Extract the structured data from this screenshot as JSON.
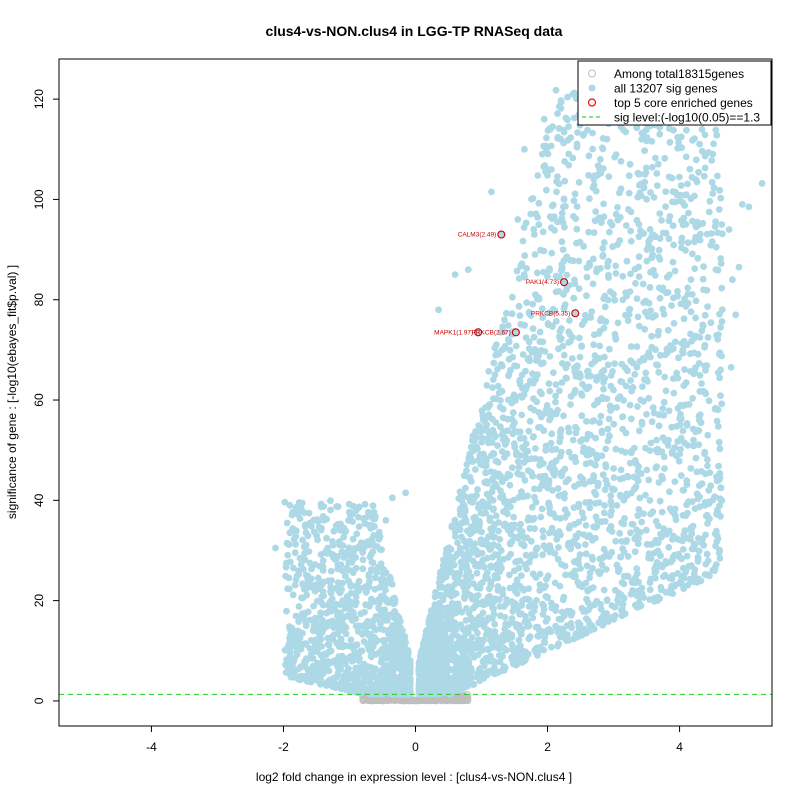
{
  "chart_data": {
    "type": "scatter",
    "title": "clus4-vs-NON.clus4 in LGG-TP RNASeq data",
    "xlabel": "log2 fold change in expression level : [clus4-vs-NON.clus4 ]",
    "ylabel": "significance of gene : [-log10(ebayes_fit$p.val) ]",
    "xlim": [
      -5.4,
      5.4
    ],
    "ylim": [
      -5,
      128
    ],
    "x_ticks": [
      -4,
      -2,
      0,
      2,
      4
    ],
    "y_ticks": [
      0,
      20,
      40,
      60,
      80,
      100,
      120
    ],
    "x_tick_labels": [
      "-4",
      "-2",
      "0",
      "2",
      "4"
    ],
    "y_tick_labels": [
      "0",
      "20",
      "40",
      "60",
      "80",
      "100",
      "120"
    ],
    "grid": false,
    "legend_position": "top-right",
    "legend": [
      {
        "label": "Among total18315genes",
        "marker": "open-circle",
        "color": "#bebebe"
      },
      {
        "label": "all 13207 sig genes",
        "marker": "filled-circle",
        "color": "#add8e6"
      },
      {
        "label": "top 5 core enriched genes",
        "marker": "open-circle",
        "color": "#ff0000"
      },
      {
        "label": "sig level:(-log10(0.05)==1.3",
        "marker": "dashed-line",
        "color": "#00cc00"
      }
    ],
    "sig_level": 1.3,
    "colors": {
      "nonsig": "#bebebe",
      "sig": "#add8e6",
      "core": "#cc0000",
      "sig_line": "#22cc22"
    },
    "top_genes": [
      {
        "label": "CALM3(2.49)",
        "x": 1.3,
        "y": 93
      },
      {
        "label": "PAK1(4.73)",
        "x": 2.25,
        "y": 83.5
      },
      {
        "label": "PRKCB(5.35)",
        "x": 2.42,
        "y": 77.3
      },
      {
        "label": "MAPK1(1.97)",
        "x": 0.95,
        "y": 73.5
      },
      {
        "label": "PRKCB(2.67)",
        "x": 1.52,
        "y": 73.5
      }
    ],
    "highlight_points": [
      {
        "x": 5.25,
        "y": 103.2
      },
      {
        "x": 4.95,
        "y": 99.0
      },
      {
        "x": 5.05,
        "y": 98.5
      },
      {
        "x": 4.6,
        "y": 98
      },
      {
        "x": 4.45,
        "y": 97.5
      },
      {
        "x": 4.75,
        "y": 94
      },
      {
        "x": 3.95,
        "y": 122
      },
      {
        "x": 4.15,
        "y": 118
      },
      {
        "x": 3.6,
        "y": 121
      },
      {
        "x": 3.4,
        "y": 125
      },
      {
        "x": 3.1,
        "y": 116
      },
      {
        "x": 2.55,
        "y": 113
      },
      {
        "x": 2.2,
        "y": 112
      },
      {
        "x": 1.95,
        "y": 116
      },
      {
        "x": 1.65,
        "y": 110
      },
      {
        "x": 2.9,
        "y": 112
      },
      {
        "x": 3.7,
        "y": 113
      },
      {
        "x": 2.8,
        "y": 108
      },
      {
        "x": 1.15,
        "y": 101.5
      },
      {
        "x": 1.55,
        "y": 96
      },
      {
        "x": 1.8,
        "y": 93
      },
      {
        "x": 2.7,
        "y": 104
      },
      {
        "x": 3.25,
        "y": 107
      },
      {
        "x": 4.3,
        "y": 92
      },
      {
        "x": 4.55,
        "y": 86
      },
      {
        "x": 4.8,
        "y": 84
      },
      {
        "x": 4.9,
        "y": 86.5
      },
      {
        "x": 4.85,
        "y": 77
      },
      {
        "x": 4.35,
        "y": 75
      },
      {
        "x": 4.05,
        "y": 70
      },
      {
        "x": 4.78,
        "y": 66.5
      },
      {
        "x": 4.3,
        "y": 56
      },
      {
        "x": 4.25,
        "y": 54
      },
      {
        "x": 3.65,
        "y": 52
      },
      {
        "x": 3.2,
        "y": 32
      },
      {
        "x": 2.9,
        "y": 20
      },
      {
        "x": 0.8,
        "y": 86
      },
      {
        "x": 0.6,
        "y": 85
      },
      {
        "x": 0.35,
        "y": 78
      },
      {
        "x": -2.12,
        "y": 30.5
      },
      {
        "x": -1.85,
        "y": 26.5
      },
      {
        "x": -1.6,
        "y": 27.5
      },
      {
        "x": -1.4,
        "y": 26
      },
      {
        "x": -0.9,
        "y": 38
      },
      {
        "x": -0.65,
        "y": 37.5
      },
      {
        "x": -0.35,
        "y": 40.5
      },
      {
        "x": -0.15,
        "y": 41.5
      },
      {
        "x": -0.45,
        "y": 36
      },
      {
        "x": -1.1,
        "y": 31
      },
      {
        "x": -1.25,
        "y": 29
      },
      {
        "x": -1.75,
        "y": 12.5
      },
      {
        "x": -1.82,
        "y": 11
      },
      {
        "x": -1.55,
        "y": 14
      },
      {
        "x": -1.9,
        "y": 9
      }
    ]
  }
}
